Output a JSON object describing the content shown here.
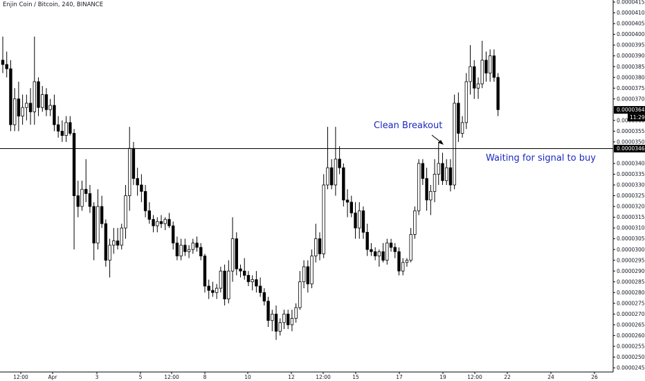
{
  "symbol": {
    "title": "Enjin Coin / Bitcoin, 240, BINANCE"
  },
  "annotations": {
    "breakout": "Clean Breakout",
    "signal": "Waiting for signal to buy"
  },
  "price_axis": {
    "labels": [
      "0.00004150",
      "0.00004100",
      "0.00004050",
      "0.00004000",
      "0.00003950",
      "0.00003900",
      "0.00003850",
      "0.00003800",
      "0.00003750",
      "0.00003700",
      "0.00003600",
      "0.00003550",
      "0.00003500",
      "0.00003400",
      "0.00003350",
      "0.00003300",
      "0.00003250",
      "0.00003200",
      "0.00003150",
      "0.00003100",
      "0.00003050",
      "0.00003000",
      "0.00002950",
      "0.00002900",
      "0.00002850",
      "0.00002800",
      "0.00002750",
      "0.00002700",
      "0.00002650",
      "0.00002600",
      "0.00002550",
      "0.00002500",
      "0.00002450"
    ],
    "current_price": "0.00003649",
    "countdown": "11:29",
    "line_price": "0.00003469"
  },
  "time_axis": {
    "labels": [
      "12:00",
      "Apr",
      "3",
      "5",
      "12:00",
      "8",
      "10",
      "12",
      "12:00",
      "15",
      "17",
      "19",
      "12:00",
      "22",
      "24",
      "26"
    ]
  },
  "colors": {
    "candle": "#000000",
    "background": "#ffffff",
    "annotation": "#1a28c0"
  },
  "chart_data": {
    "type": "candlestick",
    "price_range": [
      2.45e-05,
      4.15e-05
    ],
    "horizontal_line": 3.469e-05,
    "candles": [
      {
        "o": 3.88,
        "h": 3.99,
        "l": 3.82,
        "c": 3.86
      },
      {
        "o": 3.86,
        "h": 3.92,
        "l": 3.8,
        "c": 3.84
      },
      {
        "o": 3.84,
        "h": 3.88,
        "l": 3.55,
        "c": 3.58
      },
      {
        "o": 3.58,
        "h": 3.75,
        "l": 3.55,
        "c": 3.7
      },
      {
        "o": 3.7,
        "h": 3.78,
        "l": 3.55,
        "c": 3.62
      },
      {
        "o": 3.62,
        "h": 3.72,
        "l": 3.58,
        "c": 3.66
      },
      {
        "o": 3.66,
        "h": 3.72,
        "l": 3.6,
        "c": 3.68
      },
      {
        "o": 3.68,
        "h": 3.75,
        "l": 3.58,
        "c": 3.64
      },
      {
        "o": 3.64,
        "h": 3.99,
        "l": 3.58,
        "c": 3.78
      },
      {
        "o": 3.78,
        "h": 3.8,
        "l": 3.62,
        "c": 3.66
      },
      {
        "o": 3.66,
        "h": 3.76,
        "l": 3.64,
        "c": 3.72
      },
      {
        "o": 3.72,
        "h": 3.75,
        "l": 3.62,
        "c": 3.65
      },
      {
        "o": 3.65,
        "h": 3.7,
        "l": 3.62,
        "c": 3.67
      },
      {
        "o": 3.67,
        "h": 3.72,
        "l": 3.55,
        "c": 3.58
      },
      {
        "o": 3.58,
        "h": 3.62,
        "l": 3.52,
        "c": 3.55
      },
      {
        "o": 3.55,
        "h": 3.6,
        "l": 3.5,
        "c": 3.53
      },
      {
        "o": 3.53,
        "h": 3.62,
        "l": 3.5,
        "c": 3.59
      },
      {
        "o": 3.59,
        "h": 3.62,
        "l": 3.53,
        "c": 3.54
      },
      {
        "o": 3.54,
        "h": 3.56,
        "l": 3.0,
        "c": 3.25
      },
      {
        "o": 3.25,
        "h": 3.32,
        "l": 3.15,
        "c": 3.2
      },
      {
        "o": 3.2,
        "h": 3.32,
        "l": 3.18,
        "c": 3.28
      },
      {
        "o": 3.28,
        "h": 3.42,
        "l": 3.22,
        "c": 3.26
      },
      {
        "o": 3.26,
        "h": 3.3,
        "l": 3.17,
        "c": 3.2
      },
      {
        "o": 3.2,
        "h": 3.22,
        "l": 2.95,
        "c": 3.03
      },
      {
        "o": 3.03,
        "h": 3.28,
        "l": 3.0,
        "c": 3.2
      },
      {
        "o": 3.2,
        "h": 3.25,
        "l": 3.1,
        "c": 3.12
      },
      {
        "o": 3.12,
        "h": 3.14,
        "l": 2.92,
        "c": 2.95
      },
      {
        "o": 2.95,
        "h": 3.05,
        "l": 2.87,
        "c": 3.02
      },
      {
        "o": 3.02,
        "h": 3.1,
        "l": 2.98,
        "c": 3.04
      },
      {
        "o": 3.04,
        "h": 3.1,
        "l": 3.0,
        "c": 3.02
      },
      {
        "o": 3.02,
        "h": 3.12,
        "l": 3.0,
        "c": 3.1
      },
      {
        "o": 3.1,
        "h": 3.3,
        "l": 3.05,
        "c": 3.25
      },
      {
        "o": 3.25,
        "h": 3.57,
        "l": 3.18,
        "c": 3.47
      },
      {
        "o": 3.47,
        "h": 3.5,
        "l": 3.3,
        "c": 3.33
      },
      {
        "o": 3.33,
        "h": 3.38,
        "l": 3.25,
        "c": 3.3
      },
      {
        "o": 3.3,
        "h": 3.35,
        "l": 3.22,
        "c": 3.27
      },
      {
        "o": 3.27,
        "h": 3.3,
        "l": 3.15,
        "c": 3.18
      },
      {
        "o": 3.18,
        "h": 3.22,
        "l": 3.12,
        "c": 3.14
      },
      {
        "o": 3.14,
        "h": 3.16,
        "l": 3.08,
        "c": 3.11
      },
      {
        "o": 3.11,
        "h": 3.15,
        "l": 3.08,
        "c": 3.13
      },
      {
        "o": 3.13,
        "h": 3.16,
        "l": 3.1,
        "c": 3.12
      },
      {
        "o": 3.12,
        "h": 3.15,
        "l": 3.09,
        "c": 3.14
      },
      {
        "o": 3.14,
        "h": 3.17,
        "l": 3.1,
        "c": 3.11
      },
      {
        "o": 3.11,
        "h": 3.13,
        "l": 3.0,
        "c": 3.03
      },
      {
        "o": 3.03,
        "h": 3.06,
        "l": 2.95,
        "c": 2.97
      },
      {
        "o": 2.97,
        "h": 3.05,
        "l": 2.95,
        "c": 3.02
      },
      {
        "o": 3.02,
        "h": 3.05,
        "l": 2.97,
        "c": 2.99
      },
      {
        "o": 2.99,
        "h": 3.02,
        "l": 2.96,
        "c": 3.0
      },
      {
        "o": 3.0,
        "h": 3.05,
        "l": 2.98,
        "c": 3.03
      },
      {
        "o": 3.03,
        "h": 3.06,
        "l": 2.99,
        "c": 3.01
      },
      {
        "o": 3.01,
        "h": 3.03,
        "l": 2.95,
        "c": 2.97
      },
      {
        "o": 2.97,
        "h": 2.98,
        "l": 2.8,
        "c": 2.83
      },
      {
        "o": 2.83,
        "h": 2.86,
        "l": 2.77,
        "c": 2.81
      },
      {
        "o": 2.81,
        "h": 2.85,
        "l": 2.78,
        "c": 2.8
      },
      {
        "o": 2.8,
        "h": 2.84,
        "l": 2.77,
        "c": 2.82
      },
      {
        "o": 2.82,
        "h": 2.92,
        "l": 2.8,
        "c": 2.9
      },
      {
        "o": 2.9,
        "h": 2.93,
        "l": 2.74,
        "c": 2.77
      },
      {
        "o": 2.77,
        "h": 2.95,
        "l": 2.75,
        "c": 2.9
      },
      {
        "o": 2.9,
        "h": 3.15,
        "l": 2.85,
        "c": 3.05
      },
      {
        "o": 3.05,
        "h": 3.08,
        "l": 2.88,
        "c": 2.91
      },
      {
        "o": 2.91,
        "h": 2.93,
        "l": 2.87,
        "c": 2.9
      },
      {
        "o": 2.9,
        "h": 2.96,
        "l": 2.86,
        "c": 2.88
      },
      {
        "o": 2.88,
        "h": 2.9,
        "l": 2.83,
        "c": 2.85
      },
      {
        "o": 2.85,
        "h": 2.88,
        "l": 2.81,
        "c": 2.86
      },
      {
        "o": 2.86,
        "h": 2.9,
        "l": 2.8,
        "c": 2.83
      },
      {
        "o": 2.83,
        "h": 2.87,
        "l": 2.78,
        "c": 2.8
      },
      {
        "o": 2.8,
        "h": 2.82,
        "l": 2.74,
        "c": 2.76
      },
      {
        "o": 2.76,
        "h": 2.78,
        "l": 2.64,
        "c": 2.67
      },
      {
        "o": 2.67,
        "h": 2.72,
        "l": 2.62,
        "c": 2.7
      },
      {
        "o": 2.7,
        "h": 2.74,
        "l": 2.58,
        "c": 2.62
      },
      {
        "o": 2.62,
        "h": 2.68,
        "l": 2.6,
        "c": 2.66
      },
      {
        "o": 2.66,
        "h": 2.72,
        "l": 2.63,
        "c": 2.7
      },
      {
        "o": 2.7,
        "h": 2.72,
        "l": 2.63,
        "c": 2.65
      },
      {
        "o": 2.65,
        "h": 2.72,
        "l": 2.62,
        "c": 2.68
      },
      {
        "o": 2.68,
        "h": 2.75,
        "l": 2.66,
        "c": 2.73
      },
      {
        "o": 2.73,
        "h": 2.9,
        "l": 2.72,
        "c": 2.85
      },
      {
        "o": 2.85,
        "h": 2.95,
        "l": 2.82,
        "c": 2.92
      },
      {
        "o": 2.92,
        "h": 2.95,
        "l": 2.8,
        "c": 2.84
      },
      {
        "o": 2.84,
        "h": 3.0,
        "l": 2.82,
        "c": 2.97
      },
      {
        "o": 2.97,
        "h": 3.12,
        "l": 2.94,
        "c": 3.05
      },
      {
        "o": 3.05,
        "h": 3.08,
        "l": 2.95,
        "c": 2.98
      },
      {
        "o": 2.98,
        "h": 3.35,
        "l": 2.96,
        "c": 3.3
      },
      {
        "o": 3.3,
        "h": 3.57,
        "l": 3.28,
        "c": 3.38
      },
      {
        "o": 3.38,
        "h": 3.42,
        "l": 3.28,
        "c": 3.3
      },
      {
        "o": 3.3,
        "h": 3.57,
        "l": 3.25,
        "c": 3.42
      },
      {
        "o": 3.42,
        "h": 3.48,
        "l": 3.35,
        "c": 3.38
      },
      {
        "o": 3.38,
        "h": 3.4,
        "l": 3.2,
        "c": 3.23
      },
      {
        "o": 3.23,
        "h": 3.28,
        "l": 3.15,
        "c": 3.22
      },
      {
        "o": 3.22,
        "h": 3.25,
        "l": 3.15,
        "c": 3.17
      },
      {
        "o": 3.17,
        "h": 3.22,
        "l": 3.05,
        "c": 3.1
      },
      {
        "o": 3.1,
        "h": 3.22,
        "l": 3.05,
        "c": 3.18
      },
      {
        "o": 3.18,
        "h": 3.2,
        "l": 3.05,
        "c": 3.08
      },
      {
        "o": 3.08,
        "h": 3.12,
        "l": 2.97,
        "c": 3.0
      },
      {
        "o": 3.0,
        "h": 3.03,
        "l": 2.97,
        "c": 2.99
      },
      {
        "o": 2.99,
        "h": 3.01,
        "l": 2.95,
        "c": 2.97
      },
      {
        "o": 2.97,
        "h": 3.0,
        "l": 2.92,
        "c": 2.99
      },
      {
        "o": 2.99,
        "h": 3.03,
        "l": 2.94,
        "c": 2.95
      },
      {
        "o": 2.95,
        "h": 3.05,
        "l": 2.93,
        "c": 3.03
      },
      {
        "o": 3.03,
        "h": 3.05,
        "l": 2.99,
        "c": 3.01
      },
      {
        "o": 3.01,
        "h": 3.03,
        "l": 2.96,
        "c": 2.99
      },
      {
        "o": 2.99,
        "h": 3.01,
        "l": 2.88,
        "c": 2.9
      },
      {
        "o": 2.9,
        "h": 2.96,
        "l": 2.88,
        "c": 2.94
      },
      {
        "o": 2.94,
        "h": 2.96,
        "l": 2.92,
        "c": 2.95
      },
      {
        "o": 2.95,
        "h": 3.1,
        "l": 2.94,
        "c": 3.07
      },
      {
        "o": 3.07,
        "h": 3.2,
        "l": 3.05,
        "c": 3.18
      },
      {
        "o": 3.18,
        "h": 3.42,
        "l": 3.16,
        "c": 3.4
      },
      {
        "o": 3.4,
        "h": 3.42,
        "l": 3.3,
        "c": 3.33
      },
      {
        "o": 3.33,
        "h": 3.38,
        "l": 3.18,
        "c": 3.23
      },
      {
        "o": 3.23,
        "h": 3.3,
        "l": 3.16,
        "c": 3.27
      },
      {
        "o": 3.27,
        "h": 3.42,
        "l": 3.22,
        "c": 3.35
      },
      {
        "o": 3.35,
        "h": 3.5,
        "l": 3.3,
        "c": 3.4
      },
      {
        "o": 3.4,
        "h": 3.45,
        "l": 3.3,
        "c": 3.32
      },
      {
        "o": 3.32,
        "h": 3.42,
        "l": 3.3,
        "c": 3.38
      },
      {
        "o": 3.38,
        "h": 3.42,
        "l": 3.27,
        "c": 3.3
      },
      {
        "o": 3.3,
        "h": 3.72,
        "l": 3.28,
        "c": 3.68
      },
      {
        "o": 3.68,
        "h": 3.73,
        "l": 3.5,
        "c": 3.54
      },
      {
        "o": 3.54,
        "h": 3.62,
        "l": 3.52,
        "c": 3.59
      },
      {
        "o": 3.59,
        "h": 3.82,
        "l": 3.56,
        "c": 3.78
      },
      {
        "o": 3.78,
        "h": 3.95,
        "l": 3.72,
        "c": 3.85
      },
      {
        "o": 3.85,
        "h": 3.88,
        "l": 3.7,
        "c": 3.75
      },
      {
        "o": 3.75,
        "h": 3.8,
        "l": 3.7,
        "c": 3.77
      },
      {
        "o": 3.77,
        "h": 3.97,
        "l": 3.75,
        "c": 3.88
      },
      {
        "o": 3.88,
        "h": 3.92,
        "l": 3.78,
        "c": 3.82
      },
      {
        "o": 3.82,
        "h": 3.93,
        "l": 3.78,
        "c": 3.9
      },
      {
        "o": 3.9,
        "h": 3.93,
        "l": 3.78,
        "c": 3.8
      },
      {
        "o": 3.8,
        "h": 3.82,
        "l": 3.62,
        "c": 3.65
      }
    ]
  }
}
